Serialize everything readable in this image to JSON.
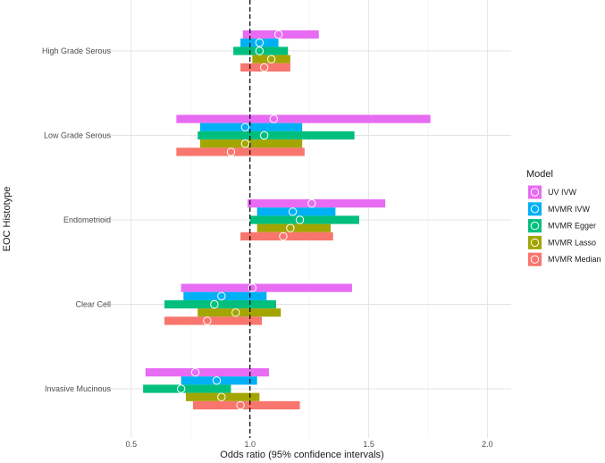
{
  "chart_data": {
    "type": "forest",
    "xlabel": "Odds ratio (95% confidence intervals)",
    "ylabel": "EOC Histotype",
    "xlim": [
      0.35,
      2.1
    ],
    "xticks": [
      0.5,
      1.0,
      1.5,
      2.0
    ],
    "xtick_labels": [
      "0.5",
      "1.0",
      "1.5",
      "2.0"
    ],
    "reference_line": 1.0,
    "legend": {
      "title": "Model",
      "position": "right",
      "items": [
        "UV IVW",
        "MVMR IVW",
        "MVMR Egger",
        "MVMR Lasso",
        "MVMR Median"
      ]
    },
    "colors": {
      "UV IVW": "#E76BF3",
      "MVMR IVW": "#00B0F6",
      "MVMR Egger": "#00BF7D",
      "MVMR Lasso": "#A3A500",
      "MVMR Median": "#F8766D"
    },
    "categories": [
      "High Grade Serous",
      "Low Grade Serous",
      "Endometrioid",
      "Clear Cell",
      "Invasive Mucinous"
    ],
    "series": [
      {
        "name": "UV IVW",
        "estimates": [
          1.12,
          1.1,
          1.26,
          1.01,
          0.77
        ],
        "lower": [
          0.97,
          0.69,
          0.99,
          0.71,
          0.56
        ],
        "upper": [
          1.29,
          1.76,
          1.57,
          1.43,
          1.08
        ]
      },
      {
        "name": "MVMR IVW",
        "estimates": [
          1.04,
          0.98,
          1.18,
          0.88,
          0.86
        ],
        "lower": [
          0.96,
          0.79,
          1.03,
          0.72,
          0.71
        ],
        "upper": [
          1.12,
          1.22,
          1.36,
          1.07,
          1.03
        ]
      },
      {
        "name": "MVMR Egger",
        "estimates": [
          1.04,
          1.06,
          1.21,
          0.85,
          0.71
        ],
        "lower": [
          0.93,
          0.78,
          1.0,
          0.64,
          0.55
        ],
        "upper": [
          1.16,
          1.44,
          1.46,
          1.11,
          0.92
        ]
      },
      {
        "name": "MVMR Lasso",
        "estimates": [
          1.09,
          0.98,
          1.17,
          0.94,
          0.88
        ],
        "lower": [
          1.01,
          0.79,
          1.03,
          0.78,
          0.73
        ],
        "upper": [
          1.17,
          1.22,
          1.34,
          1.13,
          1.04
        ]
      },
      {
        "name": "MVMR Median",
        "estimates": [
          1.06,
          0.92,
          1.14,
          0.82,
          0.96
        ],
        "lower": [
          0.96,
          0.69,
          0.96,
          0.64,
          0.76
        ],
        "upper": [
          1.17,
          1.23,
          1.35,
          1.05,
          1.21
        ]
      }
    ]
  }
}
